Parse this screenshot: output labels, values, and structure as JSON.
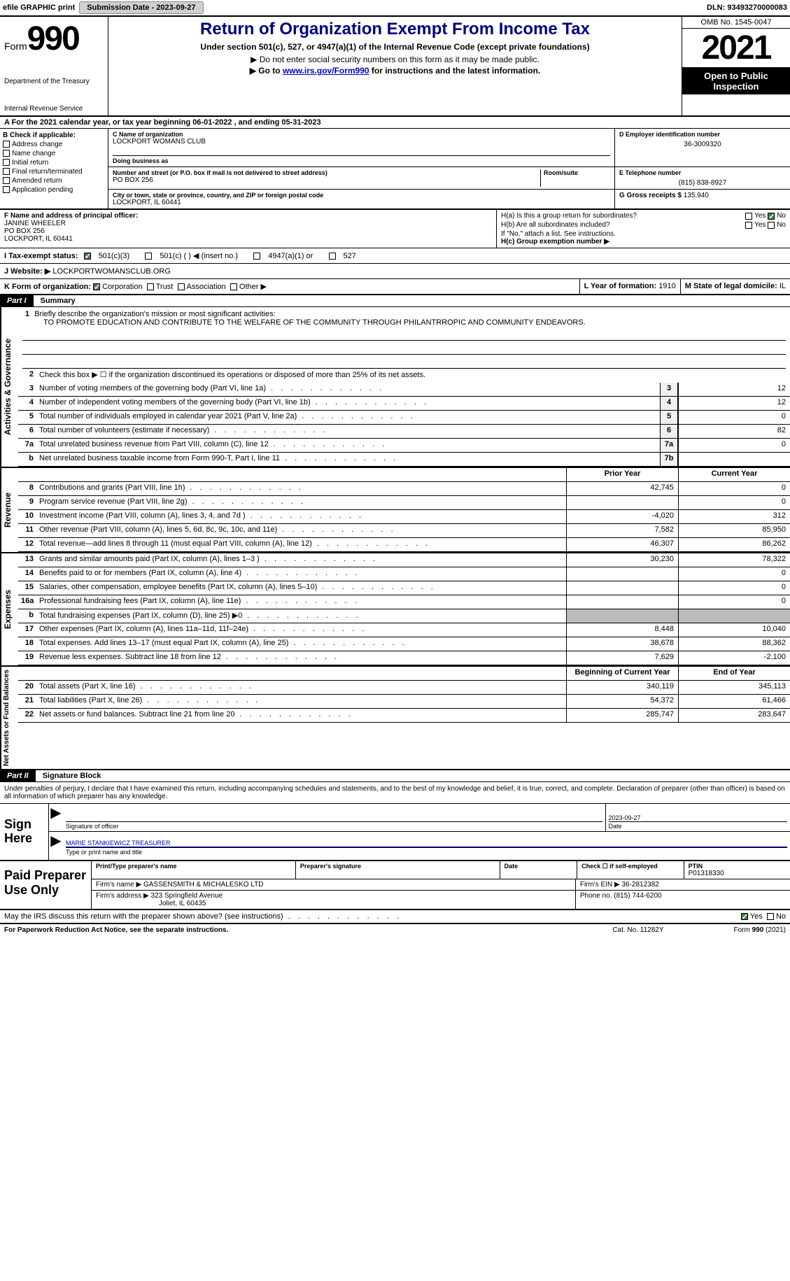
{
  "topbar": {
    "efile": "efile GRAPHIC print",
    "submission_label": "Submission Date - 2023-09-27",
    "dln": "DLN: 93493270000083"
  },
  "header": {
    "form_prefix": "Form",
    "form_number": "990",
    "title": "Return of Organization Exempt From Income Tax",
    "subtitle": "Under section 501(c), 527, or 4947(a)(1) of the Internal Revenue Code (except private foundations)",
    "note1": "▶ Do not enter social security numbers on this form as it may be made public.",
    "note2_prefix": "▶ Go to ",
    "note2_link": "www.irs.gov/Form990",
    "note2_suffix": " for instructions and the latest information.",
    "omb": "OMB No. 1545-0047",
    "year": "2021",
    "open": "Open to Public Inspection",
    "dept": "Department of the Treasury",
    "irs": "Internal Revenue Service"
  },
  "A": {
    "text": "A For the 2021 calendar year, or tax year beginning 06-01-2022   , and ending 05-31-2023"
  },
  "B": {
    "label": "B Check if applicable:",
    "items": [
      "Address change",
      "Name change",
      "Initial return",
      "Final return/terminated",
      "Amended return",
      "Application pending"
    ]
  },
  "C": {
    "name_label": "C Name of organization",
    "name": "LOCKPORT WOMANS CLUB",
    "dba_label": "Doing business as",
    "addr_label": "Number and street (or P.O. box if mail is not delivered to street address)",
    "room_label": "Room/suite",
    "addr": "PO BOX 256",
    "city_label": "City or town, state or province, country, and ZIP or foreign postal code",
    "city": "LOCKPORT, IL  60441"
  },
  "D": {
    "label": "D Employer identification number",
    "value": "36-3009320"
  },
  "E": {
    "label": "E Telephone number",
    "value": "(815) 838-8927"
  },
  "G": {
    "label": "G Gross receipts $",
    "value": "135,940"
  },
  "F": {
    "label": "F Name and address of principal officer:",
    "name": "JANINE WHEELER",
    "addr": "PO BOX 256",
    "city": "LOCKPORT, IL  60441"
  },
  "H": {
    "a_label": "H(a)  Is this a group return for subordinates?",
    "b_label": "H(b)  Are all subordinates included?",
    "b_note": "If \"No,\" attach a list. See instructions.",
    "c_label": "H(c)  Group exemption number ▶",
    "yes": "Yes",
    "no": "No"
  },
  "I": {
    "label": "I   Tax-exempt status:",
    "opts": [
      "501(c)(3)",
      "501(c) (  ) ◀ (insert no.)",
      "4947(a)(1) or",
      "527"
    ]
  },
  "J": {
    "label": "J   Website: ▶",
    "value": "LOCKPORTWOMANSCLUB.ORG"
  },
  "K": {
    "label": "K Form of organization:",
    "opts": [
      "Corporation",
      "Trust",
      "Association",
      "Other ▶"
    ]
  },
  "L": {
    "label": "L Year of formation:",
    "value": "1910"
  },
  "M": {
    "label": "M State of legal domicile:",
    "value": "IL"
  },
  "partI": {
    "tab": "Part I",
    "title": "Summary",
    "line1_label": "Briefly describe the organization's mission or most significant activities:",
    "mission": "TO PROMOTE EDUCATION AND CONTRIBUTE TO THE WELFARE OF THE COMMUNITY THROUGH PHILANTRROPIC AND COMMUNITY ENDEAVORS.",
    "line2": "Check this box ▶ ☐  if the organization discontinued its operations or disposed of more than 25% of its net assets.",
    "prior_year": "Prior Year",
    "current_year": "Current Year",
    "beg_year": "Beginning of Current Year",
    "end_year": "End of Year",
    "vert_labels": [
      "Activities & Governance",
      "Revenue",
      "Expenses",
      "Net Assets or Fund Balances"
    ],
    "rows": [
      {
        "n": "3",
        "t": "Number of voting members of the governing body (Part VI, line 1a)",
        "box": "3",
        "v": "12"
      },
      {
        "n": "4",
        "t": "Number of independent voting members of the governing body (Part VI, line 1b)",
        "box": "4",
        "v": "12"
      },
      {
        "n": "5",
        "t": "Total number of individuals employed in calendar year 2021 (Part V, line 2a)",
        "box": "5",
        "v": "0"
      },
      {
        "n": "6",
        "t": "Total number of volunteers (estimate if necessary)",
        "box": "6",
        "v": "82"
      },
      {
        "n": "7a",
        "t": "Total unrelated business revenue from Part VIII, column (C), line 12",
        "box": "7a",
        "v": "0"
      },
      {
        "n": " b",
        "t": "Net unrelated business taxable income from Form 990-T, Part I, line 11",
        "box": "7b",
        "v": ""
      }
    ],
    "rev": [
      {
        "n": "8",
        "t": "Contributions and grants (Part VIII, line 1h)",
        "p": "42,745",
        "c": "0"
      },
      {
        "n": "9",
        "t": "Program service revenue (Part VIII, line 2g)",
        "p": "",
        "c": "0"
      },
      {
        "n": "10",
        "t": "Investment income (Part VIII, column (A), lines 3, 4, and 7d )",
        "p": "-4,020",
        "c": "312"
      },
      {
        "n": "11",
        "t": "Other revenue (Part VIII, column (A), lines 5, 6d, 8c, 9c, 10c, and 11e)",
        "p": "7,582",
        "c": "85,950"
      },
      {
        "n": "12",
        "t": "Total revenue—add lines 8 through 11 (must equal Part VIII, column (A), line 12)",
        "p": "46,307",
        "c": "86,262"
      }
    ],
    "exp": [
      {
        "n": "13",
        "t": "Grants and similar amounts paid (Part IX, column (A), lines 1–3 )",
        "p": "30,230",
        "c": "78,322"
      },
      {
        "n": "14",
        "t": "Benefits paid to or for members (Part IX, column (A), line 4)",
        "p": "",
        "c": "0"
      },
      {
        "n": "15",
        "t": "Salaries, other compensation, employee benefits (Part IX, column (A), lines 5–10)",
        "p": "",
        "c": "0"
      },
      {
        "n": "16a",
        "t": "Professional fundraising fees (Part IX, column (A), line 11e)",
        "p": "",
        "c": "0"
      },
      {
        "n": "  b",
        "t": "Total fundraising expenses (Part IX, column (D), line 25) ▶0",
        "p": "SHADE",
        "c": "SHADE"
      },
      {
        "n": "17",
        "t": "Other expenses (Part IX, column (A), lines 11a–11d, 11f–24e)",
        "p": "8,448",
        "c": "10,040"
      },
      {
        "n": "18",
        "t": "Total expenses. Add lines 13–17 (must equal Part IX, column (A), line 25)",
        "p": "38,678",
        "c": "88,362"
      },
      {
        "n": "19",
        "t": "Revenue less expenses. Subtract line 18 from line 12",
        "p": "7,629",
        "c": "-2,100"
      }
    ],
    "net": [
      {
        "n": "20",
        "t": "Total assets (Part X, line 16)",
        "p": "340,119",
        "c": "345,113"
      },
      {
        "n": "21",
        "t": "Total liabilities (Part X, line 26)",
        "p": "54,372",
        "c": "61,466"
      },
      {
        "n": "22",
        "t": "Net assets or fund balances. Subtract line 21 from line 20",
        "p": "285,747",
        "c": "283,647"
      }
    ]
  },
  "partII": {
    "tab": "Part II",
    "title": "Signature Block",
    "perjury": "Under penalties of perjury, I declare that I have examined this return, including accompanying schedules and statements, and to the best of my knowledge and belief, it is true, correct, and complete. Declaration of preparer (other than officer) is based on all information of which preparer has any knowledge.",
    "sign_here": "Sign Here",
    "sig_officer": "Signature of officer",
    "sig_date_label": "Date",
    "sig_date": "2023-09-27",
    "officer_name": "MARIE STANKIEWICZ  TREASURER",
    "type_print": "Type or print name and title",
    "paid_label": "Paid Preparer Use Only",
    "prep_name_label": "Print/Type preparer's name",
    "prep_sig_label": "Preparer's signature",
    "date_label": "Date",
    "self_emp": "Check ☐ if self-employed",
    "ptin_label": "PTIN",
    "ptin": "P01318330",
    "firm_name_label": "Firm's name    ▶",
    "firm_name": "GASSENSMITH & MICHALESKO LTD",
    "firm_ein_label": "Firm's EIN ▶",
    "firm_ein": "36-2812382",
    "firm_addr_label": "Firm's address ▶",
    "firm_addr": "323 Springfield Avenue",
    "firm_city": "Joliet, IL  60435",
    "phone_label": "Phone no.",
    "phone": "(815) 744-6200",
    "discuss": "May the IRS discuss this return with the preparer shown above? (see instructions)",
    "paperwork": "For Paperwork Reduction Act Notice, see the separate instructions.",
    "cat": "Cat. No. 11282Y",
    "form_footer": "Form 990 (2021)"
  }
}
